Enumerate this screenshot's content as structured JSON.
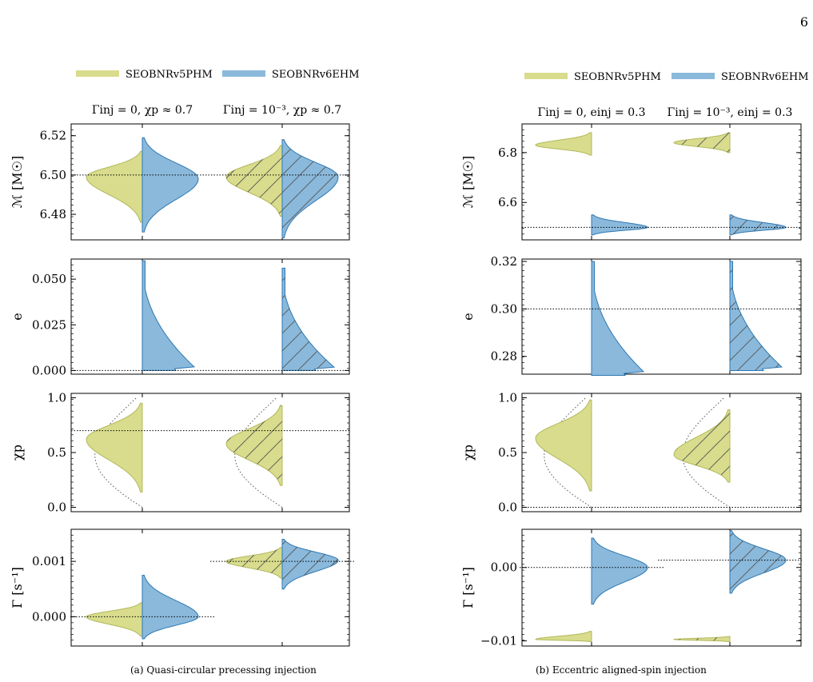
{
  "page_number": "6",
  "colors": {
    "eob5": "#d8dc8c",
    "eob5_edge": "#b1b85a",
    "eob6": "#8ab9db",
    "eob6_edge": "#2e78b4"
  },
  "panels": [
    {
      "id": "a",
      "caption": "(a) Quasi-circular precessing injection",
      "legend": [
        "SEOBNRv5PHM",
        "SEOBNRv6EHM"
      ],
      "column_titles": [
        "Γinj = 0, χp ≈ 0.7",
        "Γinj = 10⁻³, χp ≈ 0.7"
      ]
    },
    {
      "id": "b",
      "caption": "(b) Eccentric aligned-spin injection",
      "legend": [
        "SEOBNRv5PHM",
        "SEOBNRv6EHM"
      ],
      "column_titles": [
        "Γinj = 0, einj = 0.3",
        "Γinj = 10⁻³, einj = 0.3"
      ]
    }
  ],
  "chart_data": [
    {
      "type": "violin",
      "panel": "a",
      "row": "chirp_mass",
      "ylabel": "ℳ [M☉]",
      "yticks": [
        "6.48",
        "6.50",
        "6.52"
      ],
      "ylim": [
        6.467,
        6.526
      ],
      "injection": 6.5,
      "injection_span": "full",
      "series": [
        {
          "model": "SEOBNRv5PHM",
          "column": 1,
          "median": 6.499,
          "range": [
            6.476,
            6.512
          ],
          "hatched": false
        },
        {
          "model": "SEOBNRv6EHM",
          "column": 1,
          "median": 6.498,
          "range": [
            6.471,
            6.519
          ],
          "hatched": false
        },
        {
          "model": "SEOBNRv5PHM",
          "column": 2,
          "median": 6.499,
          "range": [
            6.479,
            6.515
          ],
          "hatched": true
        },
        {
          "model": "SEOBNRv6EHM",
          "column": 2,
          "median": 6.499,
          "range": [
            6.468,
            6.518
          ],
          "hatched": true
        }
      ]
    },
    {
      "type": "violin",
      "panel": "a",
      "row": "eccentricity",
      "ylabel": "e",
      "yticks": [
        "0.000",
        "0.025",
        "0.050"
      ],
      "ylim": [
        -0.002,
        0.061
      ],
      "injection": 0.0,
      "injection_span": "full",
      "series": [
        {
          "model": "SEOBNRv6EHM",
          "column": 1,
          "median": 0.011,
          "range": [
            0.0,
            0.06
          ],
          "hatched": false
        },
        {
          "model": "SEOBNRv6EHM",
          "column": 2,
          "median": 0.014,
          "range": [
            0.0,
            0.056
          ],
          "hatched": true
        }
      ]
    },
    {
      "type": "violin",
      "panel": "a",
      "row": "chi_p",
      "ylabel": "χp",
      "yticks": [
        "0.0",
        "0.5",
        "1.0"
      ],
      "ylim": [
        -0.04,
        1.04
      ],
      "injection": 0.7,
      "injection_span": "full",
      "prior_dotted": true,
      "series": [
        {
          "model": "SEOBNRv5PHM",
          "column": 1,
          "median": 0.62,
          "range": [
            0.14,
            0.95
          ],
          "hatched": false
        },
        {
          "model": "SEOBNRv5PHM",
          "column": 2,
          "median": 0.58,
          "range": [
            0.2,
            0.93
          ],
          "hatched": true
        }
      ]
    },
    {
      "type": "violin",
      "panel": "a",
      "row": "gamma",
      "ylabel": "Γ [s⁻¹]",
      "yticks": [
        "0.000",
        "0.001"
      ],
      "ylim": [
        -0.00053,
        0.00158
      ],
      "injection_lines": [
        0.0,
        0.001
      ],
      "series": [
        {
          "model": "SEOBNRv5PHM",
          "column": 1,
          "median": 0.0,
          "range": [
            -0.00035,
            0.00025
          ],
          "hatched": false
        },
        {
          "model": "SEOBNRv6EHM",
          "column": 1,
          "median": 0.0,
          "range": [
            -0.0004,
            0.00075
          ],
          "hatched": false
        },
        {
          "model": "SEOBNRv5PHM",
          "column": 2,
          "median": 0.001,
          "range": [
            0.0007,
            0.00125
          ],
          "hatched": true
        },
        {
          "model": "SEOBNRv6EHM",
          "column": 2,
          "median": 0.00102,
          "range": [
            0.0005,
            0.0014
          ],
          "hatched": true
        }
      ]
    },
    {
      "type": "violin",
      "panel": "b",
      "row": "chirp_mass",
      "ylabel": "ℳ [M☉]",
      "yticks": [
        "6.6",
        "6.8"
      ],
      "ylim": [
        6.45,
        6.915
      ],
      "injection": 6.5,
      "injection_span": "full",
      "series": [
        {
          "model": "SEOBNRv5PHM",
          "column": 1,
          "median": 6.83,
          "range": [
            6.79,
            6.88
          ],
          "hatched": false
        },
        {
          "model": "SEOBNRv6EHM",
          "column": 1,
          "median": 6.5,
          "range": [
            6.47,
            6.55
          ],
          "hatched": false
        },
        {
          "model": "SEOBNRv5PHM",
          "column": 2,
          "median": 6.84,
          "range": [
            6.8,
            6.88
          ],
          "hatched": true
        },
        {
          "model": "SEOBNRv6EHM",
          "column": 2,
          "median": 6.5,
          "range": [
            6.47,
            6.55
          ],
          "hatched": true
        }
      ]
    },
    {
      "type": "violin",
      "panel": "b",
      "row": "eccentricity",
      "ylabel": "e",
      "yticks": [
        "0.28",
        "0.30",
        "0.32"
      ],
      "ylim": [
        0.2725,
        0.321
      ],
      "injection": 0.3,
      "injection_span": "full",
      "series": [
        {
          "model": "SEOBNRv6EHM",
          "column": 1,
          "median": 0.3,
          "range": [
            0.272,
            0.32
          ],
          "hatched": false
        },
        {
          "model": "SEOBNRv6EHM",
          "column": 2,
          "median": 0.3,
          "range": [
            0.274,
            0.32
          ],
          "hatched": true
        }
      ]
    },
    {
      "type": "violin",
      "panel": "b",
      "row": "chi_p",
      "ylabel": "χp",
      "yticks": [
        "0.0",
        "0.5",
        "1.0"
      ],
      "ylim": [
        -0.04,
        1.04
      ],
      "injection": 0.0,
      "injection_span": "full",
      "prior_dotted": true,
      "series": [
        {
          "model": "SEOBNRv5PHM",
          "column": 1,
          "median": 0.63,
          "range": [
            0.15,
            0.98
          ],
          "hatched": false
        },
        {
          "model": "SEOBNRv5PHM",
          "column": 2,
          "median": 0.48,
          "range": [
            0.23,
            0.89
          ],
          "hatched": true
        }
      ]
    },
    {
      "type": "violin",
      "panel": "b",
      "row": "gamma",
      "ylabel": "Γ [s⁻¹]",
      "yticks": [
        "−0.01",
        "0.00"
      ],
      "ylim": [
        -0.0107,
        0.0052
      ],
      "injection_lines": [
        0.0,
        0.001
      ],
      "series": [
        {
          "model": "SEOBNRv5PHM",
          "column": 1,
          "median": -0.0098,
          "range": [
            -0.0101,
            -0.0087
          ],
          "hatched": false
        },
        {
          "model": "SEOBNRv6EHM",
          "column": 1,
          "median": 0.0,
          "range": [
            -0.005,
            0.004
          ],
          "hatched": false
        },
        {
          "model": "SEOBNRv5PHM",
          "column": 2,
          "median": -0.0098,
          "range": [
            -0.0101,
            -0.0094
          ],
          "hatched": true
        },
        {
          "model": "SEOBNRv6EHM",
          "column": 2,
          "median": 0.001,
          "range": [
            -0.0035,
            0.005
          ],
          "hatched": true
        }
      ]
    }
  ]
}
